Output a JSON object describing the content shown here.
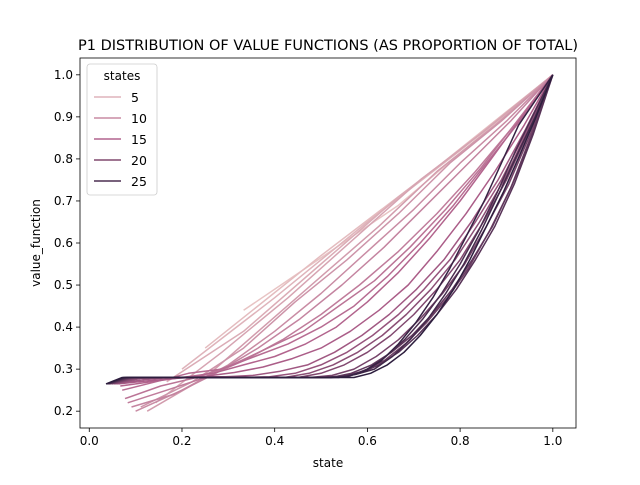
{
  "chart_data": {
    "type": "line",
    "title": "P1 DISTRIBUTION OF VALUE FUNCTIONS (AS PROPORTION OF TOTAL)",
    "xlabel": "state",
    "ylabel": "value_function",
    "xlim": [
      -0.02,
      1.05
    ],
    "ylim": [
      0.16,
      1.04
    ],
    "xticks": [
      "0.0",
      "0.2",
      "0.4",
      "0.6",
      "0.8",
      "1.0"
    ],
    "yticks": [
      "0.2",
      "0.3",
      "0.4",
      "0.5",
      "0.6",
      "0.7",
      "0.8",
      "0.9",
      "1.0"
    ],
    "grid": false,
    "legend": {
      "title": "states",
      "placement": "upper-left",
      "entries": [
        "5",
        "10",
        "15",
        "20",
        "25"
      ]
    },
    "hue": {
      "variable": "states",
      "range": [
        3,
        28
      ],
      "color_low": "#e8c4c4",
      "color_mid": "#b0608b",
      "color_high": "#2d1e3e"
    },
    "series": [
      {
        "states": 3,
        "x": [
          0.333,
          0.667,
          1.0
        ],
        "y": [
          0.44,
          0.69,
          1.0
        ]
      },
      {
        "states": 4,
        "x": [
          0.25,
          0.5,
          0.75,
          1.0
        ],
        "y": [
          0.35,
          0.57,
          0.78,
          1.0
        ]
      },
      {
        "states": 5,
        "x": [
          0.2,
          0.4,
          0.6,
          0.8,
          1.0
        ],
        "y": [
          0.3,
          0.47,
          0.65,
          0.82,
          1.0
        ]
      },
      {
        "states": 6,
        "x": [
          0.167,
          0.333,
          0.5,
          0.667,
          0.833,
          1.0
        ],
        "y": [
          0.27,
          0.39,
          0.55,
          0.71,
          0.85,
          1.0
        ]
      },
      {
        "states": 7,
        "x": [
          0.143,
          0.286,
          0.429,
          0.571,
          0.714,
          0.857,
          1.0
        ],
        "y": [
          0.22,
          0.34,
          0.47,
          0.61,
          0.75,
          0.87,
          1.0
        ]
      },
      {
        "states": 8,
        "x": [
          0.125,
          0.25,
          0.375,
          0.5,
          0.625,
          0.75,
          0.875,
          1.0
        ],
        "y": [
          0.2,
          0.28,
          0.4,
          0.52,
          0.64,
          0.77,
          0.88,
          1.0
        ]
      },
      {
        "states": 9,
        "x": [
          0.111,
          0.222,
          0.333,
          0.444,
          0.556,
          0.667,
          0.778,
          0.889,
          1.0
        ],
        "y": [
          0.21,
          0.27,
          0.35,
          0.46,
          0.56,
          0.67,
          0.79,
          0.89,
          1.0
        ]
      },
      {
        "states": 10,
        "x": [
          0.1,
          0.2,
          0.3,
          0.4,
          0.5,
          0.6,
          0.7,
          0.8,
          0.9,
          1.0
        ],
        "y": [
          0.2,
          0.25,
          0.31,
          0.39,
          0.48,
          0.58,
          0.68,
          0.79,
          0.89,
          1.0
        ]
      },
      {
        "states": 11,
        "x": [
          0.091,
          0.182,
          0.273,
          0.364,
          0.455,
          0.545,
          0.636,
          0.727,
          0.818,
          0.909,
          1.0
        ],
        "y": [
          0.21,
          0.24,
          0.29,
          0.35,
          0.42,
          0.5,
          0.59,
          0.69,
          0.79,
          0.89,
          1.0
        ]
      },
      {
        "states": 12,
        "x": [
          0.083,
          0.167,
          0.25,
          0.333,
          0.417,
          0.5,
          0.583,
          0.667,
          0.75,
          0.833,
          0.917,
          1.0
        ],
        "y": [
          0.22,
          0.25,
          0.28,
          0.32,
          0.37,
          0.43,
          0.5,
          0.58,
          0.67,
          0.77,
          0.88,
          1.0
        ]
      },
      {
        "states": 13,
        "x": [
          0.077,
          0.154,
          0.231,
          0.308,
          0.385,
          0.462,
          0.538,
          0.615,
          0.692,
          0.769,
          0.846,
          0.923,
          1.0
        ],
        "y": [
          0.23,
          0.26,
          0.28,
          0.31,
          0.35,
          0.39,
          0.45,
          0.51,
          0.59,
          0.68,
          0.78,
          0.89,
          1.0
        ]
      },
      {
        "states": 14,
        "x": [
          0.071,
          0.143,
          0.214,
          0.286,
          0.357,
          0.429,
          0.5,
          0.571,
          0.643,
          0.714,
          0.786,
          0.857,
          0.929,
          1.0
        ],
        "y": [
          0.25,
          0.27,
          0.29,
          0.3,
          0.33,
          0.36,
          0.4,
          0.45,
          0.52,
          0.6,
          0.69,
          0.79,
          0.89,
          1.0
        ]
      },
      {
        "states": 15,
        "x": [
          0.067,
          0.133,
          0.2,
          0.267,
          0.333,
          0.4,
          0.467,
          0.533,
          0.6,
          0.667,
          0.733,
          0.8,
          0.867,
          0.933,
          1.0
        ],
        "y": [
          0.26,
          0.27,
          0.28,
          0.29,
          0.31,
          0.33,
          0.36,
          0.4,
          0.46,
          0.53,
          0.61,
          0.7,
          0.8,
          0.9,
          1.0
        ]
      },
      {
        "states": 16,
        "x": [
          0.063,
          0.125,
          0.188,
          0.25,
          0.313,
          0.375,
          0.438,
          0.5,
          0.563,
          0.625,
          0.688,
          0.75,
          0.813,
          0.875,
          0.938,
          1.0
        ],
        "y": [
          0.265,
          0.272,
          0.278,
          0.283,
          0.292,
          0.305,
          0.325,
          0.35,
          0.39,
          0.44,
          0.5,
          0.58,
          0.67,
          0.77,
          0.88,
          1.0
        ]
      },
      {
        "states": 17,
        "x": [
          0.059,
          0.118,
          0.176,
          0.235,
          0.294,
          0.353,
          0.412,
          0.471,
          0.529,
          0.588,
          0.647,
          0.706,
          0.765,
          0.824,
          0.882,
          0.941,
          1.0
        ],
        "y": [
          0.265,
          0.275,
          0.28,
          0.282,
          0.282,
          0.285,
          0.295,
          0.31,
          0.34,
          0.38,
          0.43,
          0.49,
          0.56,
          0.65,
          0.75,
          0.87,
          1.0
        ]
      },
      {
        "states": 18,
        "x": [
          0.056,
          0.111,
          0.167,
          0.222,
          0.278,
          0.333,
          0.389,
          0.444,
          0.5,
          0.556,
          0.611,
          0.667,
          0.722,
          0.778,
          0.833,
          0.889,
          0.944,
          1.0
        ],
        "y": [
          0.265,
          0.278,
          0.28,
          0.28,
          0.28,
          0.28,
          0.282,
          0.29,
          0.31,
          0.34,
          0.38,
          0.43,
          0.49,
          0.56,
          0.65,
          0.75,
          0.87,
          1.0
        ]
      },
      {
        "states": 19,
        "x": [
          0.053,
          0.105,
          0.158,
          0.211,
          0.263,
          0.316,
          0.368,
          0.421,
          0.474,
          0.526,
          0.579,
          0.632,
          0.684,
          0.737,
          0.789,
          0.842,
          0.895,
          0.947,
          1.0
        ],
        "y": [
          0.265,
          0.279,
          0.28,
          0.28,
          0.28,
          0.28,
          0.28,
          0.28,
          0.29,
          0.31,
          0.34,
          0.38,
          0.43,
          0.49,
          0.56,
          0.65,
          0.75,
          0.87,
          1.0
        ]
      },
      {
        "states": 20,
        "x": [
          0.05,
          0.1,
          0.15,
          0.2,
          0.25,
          0.3,
          0.35,
          0.4,
          0.45,
          0.5,
          0.55,
          0.6,
          0.65,
          0.7,
          0.75,
          0.8,
          0.85,
          0.9,
          0.95,
          1.0
        ],
        "y": [
          0.265,
          0.28,
          0.28,
          0.28,
          0.28,
          0.28,
          0.28,
          0.28,
          0.28,
          0.29,
          0.31,
          0.34,
          0.38,
          0.43,
          0.49,
          0.56,
          0.65,
          0.75,
          0.87,
          1.0
        ]
      },
      {
        "states": 21,
        "x": [
          0.048,
          0.095,
          0.143,
          0.19,
          0.238,
          0.286,
          0.333,
          0.381,
          0.429,
          0.476,
          0.524,
          0.571,
          0.619,
          0.667,
          0.714,
          0.762,
          0.81,
          0.857,
          0.905,
          0.952,
          1.0
        ],
        "y": [
          0.265,
          0.28,
          0.28,
          0.28,
          0.28,
          0.28,
          0.28,
          0.28,
          0.28,
          0.28,
          0.285,
          0.3,
          0.33,
          0.37,
          0.42,
          0.48,
          0.55,
          0.64,
          0.74,
          0.86,
          1.0
        ]
      },
      {
        "states": 22,
        "x": [
          0.045,
          0.091,
          0.136,
          0.182,
          0.227,
          0.273,
          0.318,
          0.364,
          0.409,
          0.455,
          0.5,
          0.545,
          0.591,
          0.636,
          0.682,
          0.727,
          0.773,
          0.818,
          0.864,
          0.909,
          0.955,
          1.0
        ],
        "y": [
          0.265,
          0.28,
          0.28,
          0.28,
          0.28,
          0.28,
          0.28,
          0.28,
          0.28,
          0.28,
          0.28,
          0.283,
          0.295,
          0.32,
          0.36,
          0.41,
          0.47,
          0.54,
          0.63,
          0.73,
          0.86,
          1.0
        ]
      },
      {
        "states": 23,
        "x": [
          0.043,
          0.087,
          0.13,
          0.174,
          0.217,
          0.261,
          0.304,
          0.348,
          0.391,
          0.435,
          0.478,
          0.522,
          0.565,
          0.609,
          0.652,
          0.696,
          0.739,
          0.783,
          0.826,
          0.87,
          0.913,
          0.957,
          1.0
        ],
        "y": [
          0.265,
          0.28,
          0.28,
          0.28,
          0.28,
          0.28,
          0.28,
          0.28,
          0.28,
          0.28,
          0.28,
          0.28,
          0.29,
          0.31,
          0.34,
          0.38,
          0.43,
          0.49,
          0.56,
          0.64,
          0.74,
          0.86,
          1.0
        ]
      },
      {
        "states": 24,
        "x": [
          0.042,
          0.083,
          0.125,
          0.167,
          0.208,
          0.25,
          0.292,
          0.333,
          0.375,
          0.417,
          0.458,
          0.5,
          0.542,
          0.583,
          0.625,
          0.667,
          0.708,
          0.75,
          0.792,
          0.833,
          0.875,
          0.917,
          0.958,
          1.0
        ],
        "y": [
          0.265,
          0.28,
          0.28,
          0.28,
          0.28,
          0.28,
          0.28,
          0.28,
          0.28,
          0.28,
          0.28,
          0.28,
          0.283,
          0.29,
          0.31,
          0.34,
          0.38,
          0.43,
          0.49,
          0.56,
          0.64,
          0.74,
          0.86,
          1.0
        ]
      },
      {
        "states": 25,
        "x": [
          0.04,
          0.08,
          0.12,
          0.16,
          0.2,
          0.24,
          0.28,
          0.32,
          0.36,
          0.4,
          0.44,
          0.48,
          0.52,
          0.56,
          0.6,
          0.64,
          0.68,
          0.72,
          0.76,
          0.8,
          0.84,
          0.88,
          0.92,
          0.96,
          1.0
        ],
        "y": [
          0.265,
          0.28,
          0.28,
          0.28,
          0.28,
          0.28,
          0.28,
          0.28,
          0.28,
          0.28,
          0.28,
          0.28,
          0.28,
          0.283,
          0.3,
          0.33,
          0.37,
          0.42,
          0.48,
          0.55,
          0.63,
          0.72,
          0.82,
          0.91,
          1.0
        ]
      },
      {
        "states": 26,
        "x": [
          0.038,
          0.077,
          0.115,
          0.154,
          0.192,
          0.231,
          0.269,
          0.308,
          0.346,
          0.385,
          0.423,
          0.462,
          0.5,
          0.538,
          0.577,
          0.615,
          0.654,
          0.692,
          0.731,
          0.769,
          0.808,
          0.846,
          0.885,
          0.923,
          0.962,
          1.0
        ],
        "y": [
          0.265,
          0.28,
          0.28,
          0.28,
          0.28,
          0.28,
          0.28,
          0.28,
          0.28,
          0.28,
          0.28,
          0.28,
          0.28,
          0.28,
          0.288,
          0.3,
          0.33,
          0.37,
          0.42,
          0.48,
          0.55,
          0.63,
          0.72,
          0.81,
          0.9,
          1.0
        ]
      },
      {
        "states": 27,
        "x": [
          0.037,
          0.074,
          0.111,
          0.148,
          0.185,
          0.222,
          0.259,
          0.296,
          0.333,
          0.37,
          0.407,
          0.444,
          0.481,
          0.519,
          0.556,
          0.593,
          0.63,
          0.667,
          0.704,
          0.741,
          0.778,
          0.815,
          0.852,
          0.889,
          0.926,
          0.963,
          1.0
        ],
        "y": [
          0.265,
          0.28,
          0.28,
          0.28,
          0.28,
          0.28,
          0.28,
          0.28,
          0.28,
          0.28,
          0.28,
          0.28,
          0.28,
          0.28,
          0.282,
          0.295,
          0.32,
          0.36,
          0.41,
          0.47,
          0.54,
          0.62,
          0.7,
          0.79,
          0.88,
          0.94,
          1.0
        ]
      },
      {
        "states": 28,
        "x": [
          0.036,
          0.071,
          0.107,
          0.143,
          0.179,
          0.214,
          0.25,
          0.286,
          0.321,
          0.357,
          0.393,
          0.429,
          0.464,
          0.5,
          0.536,
          0.571,
          0.607,
          0.643,
          0.679,
          0.714,
          0.75,
          0.786,
          0.821,
          0.857,
          0.893,
          0.929,
          0.964,
          1.0
        ],
        "y": [
          0.265,
          0.28,
          0.28,
          0.28,
          0.28,
          0.28,
          0.28,
          0.28,
          0.28,
          0.28,
          0.28,
          0.28,
          0.28,
          0.28,
          0.28,
          0.28,
          0.29,
          0.31,
          0.34,
          0.38,
          0.43,
          0.49,
          0.56,
          0.64,
          0.72,
          0.81,
          0.9,
          1.0
        ]
      }
    ]
  }
}
